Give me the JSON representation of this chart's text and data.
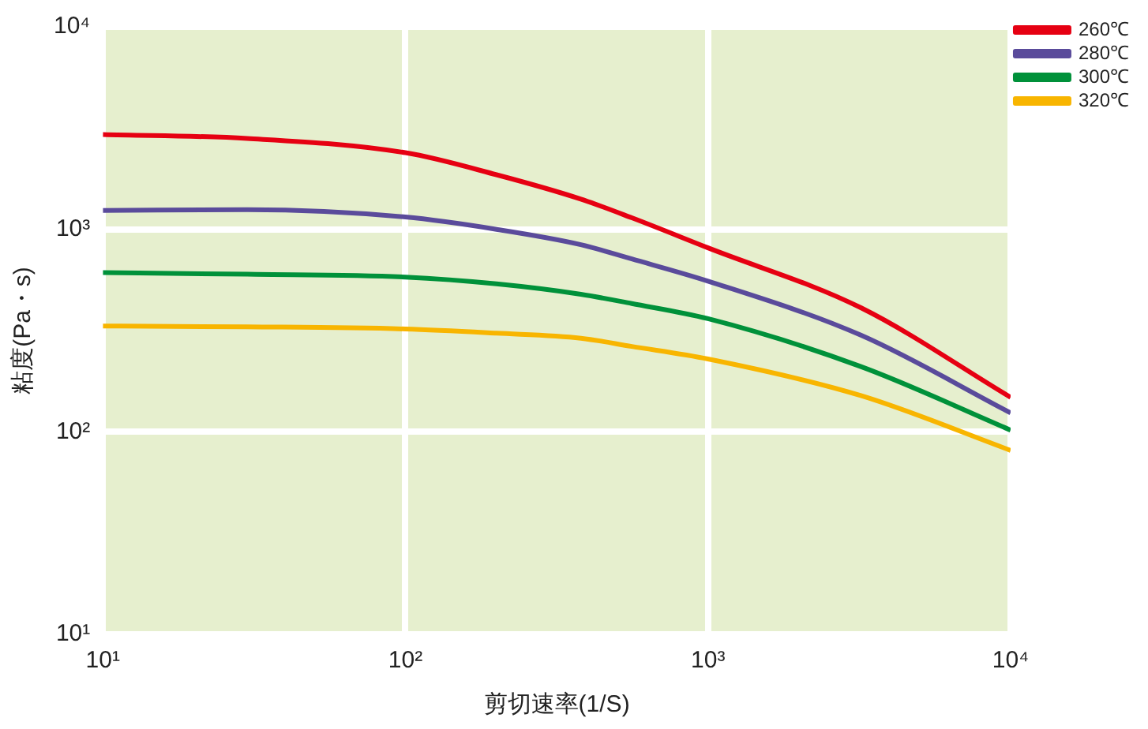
{
  "chart_data": {
    "type": "line",
    "xlabel": "剪切速率(1/S)",
    "ylabel": "粘度(Pa・s)",
    "log": "xy",
    "xlim": [
      10,
      10000
    ],
    "xticks": [
      {
        "value": 10,
        "label": "10¹"
      },
      {
        "value": 100,
        "label": "10²"
      },
      {
        "value": 1000,
        "label": "10³"
      },
      {
        "value": 10000,
        "label": "10⁴"
      }
    ],
    "ylim": [
      10,
      10000
    ],
    "yticks": [
      {
        "value": 10,
        "label": "10¹"
      },
      {
        "value": 100,
        "label": "10²"
      },
      {
        "value": 1000,
        "label": "10³"
      },
      {
        "value": 10000,
        "label": "10⁴"
      }
    ],
    "x": [
      10,
      30,
      100,
      200,
      380,
      560,
      1000,
      3200,
      10000
    ],
    "series": [
      {
        "name": "260℃",
        "color": "#e60012",
        "values": [
          2940,
          2810,
          2390,
          1860,
          1410,
          1140,
          810,
          410,
          148
        ]
      },
      {
        "name": "280℃",
        "color": "#5a4b9b",
        "values": [
          1240,
          1250,
          1150,
          1000,
          840,
          714,
          555,
          300,
          124
        ]
      },
      {
        "name": "300℃",
        "color": "#00913a",
        "values": [
          612,
          600,
          581,
          538,
          478,
          430,
          362,
          210,
          102
        ]
      },
      {
        "name": "320℃",
        "color": "#f8b500",
        "values": [
          333,
          330,
          322,
          307,
          290,
          264,
          229,
          151,
          81
        ]
      }
    ],
    "grid": true,
    "legend": "top right",
    "marker": "none",
    "line_style": "solid"
  }
}
